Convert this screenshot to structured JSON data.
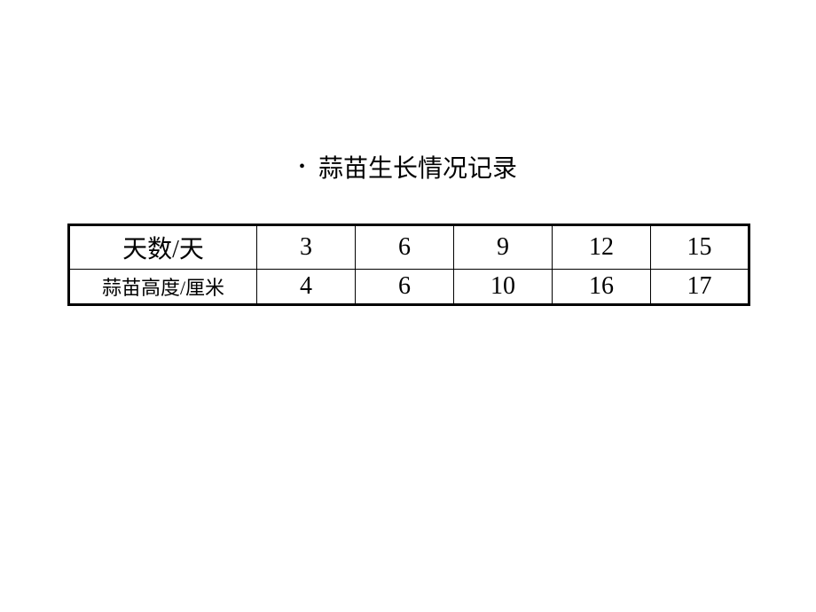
{
  "title": "蒜苗生长情况记录",
  "table": {
    "type": "table",
    "border_color": "#000000",
    "background_color": "#ffffff",
    "text_color": "#000000",
    "outer_border_width": 3,
    "inner_border_width": 1,
    "header_col_width": 212,
    "data_col_width": 111,
    "row1_height": 50,
    "row2_height": 40,
    "row1_fontsize": 28,
    "row2_header_fontsize": 22,
    "row2_data_fontsize": 28,
    "columns": [
      "天数/天",
      "3",
      "6",
      "9",
      "12",
      "15"
    ],
    "rows": [
      [
        "蒜苗高度/厘米",
        "4",
        "6",
        "10",
        "16",
        "17"
      ]
    ]
  }
}
